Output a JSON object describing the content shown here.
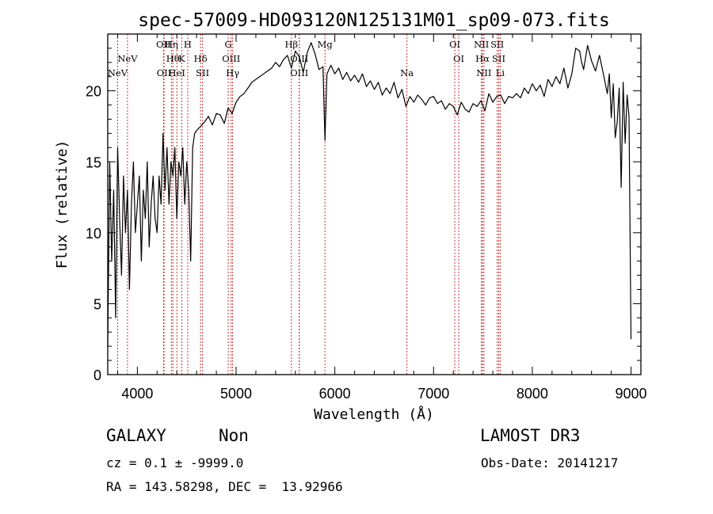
{
  "chart_data": {
    "type": "line",
    "title": "spec-57009-HD093120N125131M01_sp09-073.fits",
    "xlabel": "Wavelength (Å)",
    "ylabel": "Flux (relative)",
    "xlim": [
      3700,
      9100
    ],
    "ylim": [
      0,
      24
    ],
    "xticks": [
      4000,
      5000,
      6000,
      7000,
      8000,
      9000
    ],
    "yticks": [
      0,
      5,
      10,
      15,
      20
    ],
    "series": [
      {
        "name": "spectrum",
        "x": [
          3700,
          3720,
          3740,
          3760,
          3780,
          3800,
          3820,
          3840,
          3860,
          3880,
          3900,
          3920,
          3940,
          3960,
          3980,
          4000,
          4020,
          4040,
          4060,
          4080,
          4100,
          4120,
          4140,
          4160,
          4180,
          4200,
          4220,
          4240,
          4260,
          4280,
          4300,
          4320,
          4340,
          4360,
          4380,
          4400,
          4420,
          4440,
          4460,
          4480,
          4500,
          4520,
          4540,
          4560,
          4580,
          4600,
          4640,
          4680,
          4720,
          4760,
          4800,
          4840,
          4880,
          4920,
          4960,
          5000,
          5040,
          5080,
          5120,
          5160,
          5200,
          5240,
          5280,
          5320,
          5360,
          5400,
          5440,
          5480,
          5520,
          5560,
          5600,
          5640,
          5680,
          5720,
          5760,
          5800,
          5840,
          5880,
          5900,
          5920,
          5960,
          6000,
          6040,
          6080,
          6120,
          6160,
          6200,
          6240,
          6280,
          6320,
          6360,
          6400,
          6440,
          6480,
          6520,
          6560,
          6600,
          6640,
          6680,
          6720,
          6760,
          6800,
          6840,
          6880,
          6920,
          6960,
          7000,
          7040,
          7080,
          7120,
          7160,
          7200,
          7240,
          7280,
          7320,
          7360,
          7400,
          7440,
          7480,
          7520,
          7560,
          7600,
          7640,
          7680,
          7720,
          7760,
          7800,
          7840,
          7880,
          7920,
          7960,
          8000,
          8040,
          8080,
          8120,
          8160,
          8200,
          8240,
          8280,
          8320,
          8360,
          8400,
          8440,
          8480,
          8500,
          8520,
          8560,
          8600,
          8640,
          8680,
          8720,
          8760,
          8780,
          8800,
          8820,
          8840,
          8860,
          8880,
          8900,
          8920,
          8940,
          8960,
          8980,
          9000
        ],
        "y": [
          2,
          15,
          8,
          13,
          4,
          16,
          11,
          7,
          14,
          10,
          13,
          6,
          12,
          15,
          10,
          12,
          14,
          8,
          13,
          11,
          15,
          9,
          12,
          14,
          11,
          10,
          14,
          12,
          17,
          13,
          16,
          12,
          15,
          14,
          16,
          11,
          15,
          14,
          16,
          12,
          15,
          13,
          8,
          16,
          17,
          17.2,
          17.5,
          17.8,
          18.2,
          17.6,
          18.4,
          18.3,
          17.7,
          18.8,
          18.4,
          19.2,
          19.6,
          19.8,
          20.2,
          20.6,
          20.8,
          21,
          21.2,
          21.4,
          21.6,
          22,
          21.7,
          22.2,
          22.5,
          21.6,
          22.8,
          22.4,
          21.3,
          22.7,
          23.4,
          22.6,
          21.5,
          21.7,
          16.5,
          21.2,
          21.8,
          21.2,
          21.6,
          20.8,
          21.3,
          20.7,
          21.1,
          20.6,
          21.2,
          20.3,
          20.7,
          20.1,
          20.6,
          19.7,
          20.2,
          19.8,
          20.6,
          19.5,
          20.1,
          18.9,
          19.6,
          19.2,
          19.7,
          19.4,
          19,
          19.5,
          19.6,
          19.1,
          19.3,
          18.7,
          19.1,
          18.9,
          18.3,
          19.2,
          18.7,
          18.5,
          19.1,
          18.9,
          19.3,
          18.6,
          19.8,
          19.2,
          19.6,
          19.7,
          19.1,
          19.6,
          19.5,
          19.8,
          19.5,
          20.2,
          19.8,
          20.5,
          20,
          20.4,
          19.6,
          20.8,
          20.3,
          21,
          20.5,
          21.6,
          20.2,
          21.2,
          23,
          22.8,
          22,
          21.5,
          23.2,
          22.1,
          21.4,
          22.5,
          21.2,
          19.8,
          21.2,
          18.1,
          20.5,
          16.7,
          17.8,
          20.2,
          13.2,
          20.6,
          16.3,
          19.7,
          18.2,
          2.5
        ]
      }
    ],
    "line_color": "#cc3333",
    "spectral_lines": [
      {
        "name": "NeV",
        "x": 3800,
        "label_row": 2
      },
      {
        "name": "NeV",
        "x": 3900,
        "label_row": 1
      },
      {
        "name": "OII",
        "x": 4265,
        "label_row": 0
      },
      {
        "name": "OII",
        "x": 4270,
        "label_row": 2
      },
      {
        "name": "Hη",
        "x": 4345,
        "label_row": 0
      },
      {
        "name": "Hθ",
        "x": 4360,
        "label_row": 1
      },
      {
        "name": "HeI",
        "x": 4400,
        "label_row": 2
      },
      {
        "name": "K",
        "x": 4450,
        "label_row": 1
      },
      {
        "name": "H",
        "x": 4510,
        "label_row": 0
      },
      {
        "name": "Hδ",
        "x": 4640,
        "label_row": 1
      },
      {
        "name": "SII",
        "x": 4660,
        "label_row": 2
      },
      {
        "name": "G",
        "x": 4920,
        "label_row": 0
      },
      {
        "name": "OIII",
        "x": 4950,
        "label_row": 1
      },
      {
        "name": "Hγ",
        "x": 4965,
        "label_row": 2
      },
      {
        "name": "Hβ",
        "x": 5560,
        "label_row": 0
      },
      {
        "name": "OIII",
        "x": 5640,
        "label_row": 1
      },
      {
        "name": "OIII",
        "x": 5640,
        "label_row": 2
      },
      {
        "name": "Mg",
        "x": 5900,
        "label_row": 0
      },
      {
        "name": "Na",
        "x": 6730,
        "label_row": 2
      },
      {
        "name": "OI",
        "x": 7215,
        "label_row": 0
      },
      {
        "name": "OI",
        "x": 7255,
        "label_row": 1
      },
      {
        "name": "NII",
        "x": 7485,
        "label_row": 0
      },
      {
        "name": "Hα",
        "x": 7495,
        "label_row": 1
      },
      {
        "name": "NII",
        "x": 7510,
        "label_row": 2
      },
      {
        "name": "SII",
        "x": 7645,
        "label_row": 0
      },
      {
        "name": "SII",
        "x": 7660,
        "label_row": 1
      },
      {
        "name": "Li",
        "x": 7675,
        "label_row": 2
      }
    ]
  },
  "info": {
    "class": "GALAXY",
    "subclass": "Non",
    "survey": "LAMOST DR3",
    "cz": "cz = 0.1 ± -9999.0",
    "obs_date": "Obs-Date: 20141217",
    "coords": "RA = 143.58298, DEC =  13.92966"
  }
}
